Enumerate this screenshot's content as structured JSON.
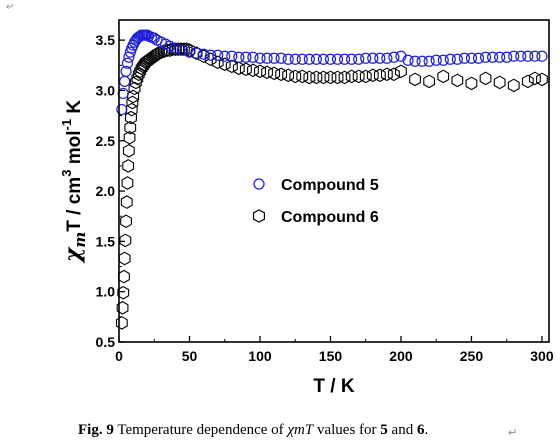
{
  "return_mark": "↵",
  "caption": {
    "fig": "Fig. 9",
    "text_1": " Temperature  dependence of ",
    "symbol": "χmT",
    "text_2": " values for ",
    "n1": "5",
    "and": " and ",
    "n2": "6",
    "end": "."
  },
  "chart_data": {
    "type": "scatter",
    "xlabel": "T / K",
    "ylabel": "χmT / cm3 mol-1 K",
    "xlim": [
      0,
      305
    ],
    "ylim": [
      0.5,
      3.7
    ],
    "x_ticks": [
      0,
      50,
      100,
      150,
      200,
      250,
      300
    ],
    "y_ticks": [
      0.5,
      1.0,
      1.5,
      2.0,
      2.5,
      3.0,
      3.5
    ],
    "grid": false,
    "legend_placement": "center",
    "colors": {
      "compound_5": "#1f1fd6",
      "compound_6": "#000000"
    },
    "markers": {
      "compound_5": "circle",
      "compound_6": "hexagon"
    },
    "series": [
      {
        "name": "Compound 5",
        "x": [
          2,
          3,
          4,
          5,
          6,
          7,
          8,
          9,
          10,
          11,
          12,
          13,
          14,
          15,
          16,
          17,
          18,
          19,
          20,
          21,
          23,
          25,
          27,
          30,
          33,
          36,
          40,
          45,
          50,
          55,
          60,
          65,
          70,
          75,
          80,
          85,
          90,
          95,
          100,
          105,
          110,
          115,
          120,
          125,
          130,
          135,
          140,
          145,
          150,
          155,
          160,
          165,
          170,
          175,
          180,
          185,
          190,
          195,
          200,
          205,
          210,
          215,
          220,
          225,
          230,
          235,
          240,
          245,
          250,
          255,
          260,
          265,
          270,
          275,
          280,
          285,
          290,
          295,
          300
        ],
        "values": [
          2.81,
          2.97,
          3.09,
          3.19,
          3.27,
          3.33,
          3.38,
          3.42,
          3.45,
          3.48,
          3.5,
          3.52,
          3.53,
          3.54,
          3.55,
          3.55,
          3.55,
          3.55,
          3.55,
          3.54,
          3.53,
          3.52,
          3.5,
          3.48,
          3.46,
          3.44,
          3.42,
          3.4,
          3.38,
          3.37,
          3.36,
          3.35,
          3.35,
          3.34,
          3.34,
          3.33,
          3.33,
          3.33,
          3.32,
          3.32,
          3.32,
          3.32,
          3.31,
          3.31,
          3.31,
          3.31,
          3.31,
          3.31,
          3.31,
          3.31,
          3.31,
          3.31,
          3.31,
          3.32,
          3.32,
          3.32,
          3.32,
          3.33,
          3.34,
          3.3,
          3.29,
          3.29,
          3.29,
          3.3,
          3.3,
          3.31,
          3.31,
          3.32,
          3.32,
          3.32,
          3.33,
          3.33,
          3.33,
          3.33,
          3.34,
          3.34,
          3.34,
          3.34,
          3.34
        ]
      },
      {
        "name": "Compound 6",
        "x": [
          2,
          2.5,
          3,
          3.5,
          4,
          4.5,
          5,
          5.5,
          6,
          6.5,
          7,
          7.5,
          8,
          8.5,
          9,
          9.5,
          10,
          11,
          12,
          13,
          14,
          15,
          16,
          17,
          18,
          19,
          20,
          21,
          22,
          23,
          24,
          25,
          26,
          27,
          28,
          30,
          32,
          34,
          36,
          38,
          40,
          42,
          44,
          46,
          48,
          50,
          55,
          60,
          65,
          70,
          75,
          80,
          85,
          90,
          95,
          100,
          105,
          110,
          115,
          120,
          125,
          130,
          135,
          140,
          145,
          150,
          155,
          160,
          165,
          170,
          175,
          180,
          185,
          190,
          195,
          200,
          210,
          220,
          230,
          240,
          250,
          260,
          270,
          280,
          290,
          295,
          300
        ],
        "values": [
          0.69,
          0.84,
          0.99,
          1.15,
          1.33,
          1.51,
          1.7,
          1.89,
          2.08,
          2.25,
          2.4,
          2.53,
          2.63,
          2.73,
          2.81,
          2.88,
          2.94,
          3.02,
          3.08,
          3.12,
          3.16,
          3.19,
          3.22,
          3.24,
          3.26,
          3.28,
          3.29,
          3.3,
          3.31,
          3.32,
          3.33,
          3.34,
          3.35,
          3.36,
          3.37,
          3.38,
          3.39,
          3.4,
          3.4,
          3.41,
          3.41,
          3.41,
          3.41,
          3.41,
          3.41,
          3.4,
          3.37,
          3.34,
          3.31,
          3.28,
          3.26,
          3.24,
          3.22,
          3.21,
          3.2,
          3.19,
          3.18,
          3.17,
          3.16,
          3.15,
          3.14,
          3.14,
          3.13,
          3.13,
          3.13,
          3.13,
          3.13,
          3.13,
          3.14,
          3.14,
          3.14,
          3.15,
          3.15,
          3.16,
          3.16,
          3.19,
          3.11,
          3.09,
          3.14,
          3.1,
          3.07,
          3.12,
          3.08,
          3.05,
          3.09,
          3.12,
          3.11
        ]
      }
    ]
  }
}
